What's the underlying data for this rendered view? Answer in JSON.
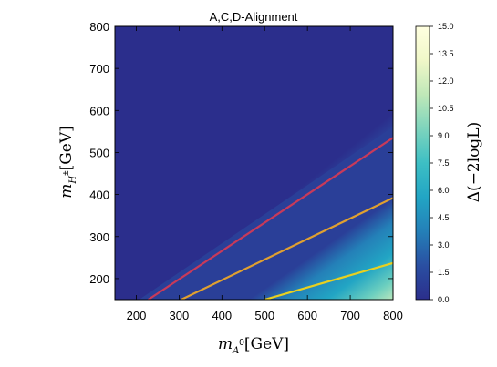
{
  "chart_data": {
    "type": "heatmap",
    "title": "A,C,D-Alignment",
    "x": {
      "label_math": "m",
      "label_sub": "A",
      "label_sup": "0",
      "label_unit": "[GeV]",
      "range": [
        150,
        800
      ],
      "ticks": [
        200,
        300,
        400,
        500,
        600,
        700,
        800
      ]
    },
    "y": {
      "label_math": "m",
      "label_sub": "H",
      "label_sup": "±",
      "label_unit": "[GeV]",
      "range": [
        150,
        800
      ],
      "ticks": [
        200,
        300,
        400,
        500,
        600,
        700,
        800
      ]
    },
    "colorbar": {
      "label": "Δ(−2logL)",
      "range": [
        0,
        15
      ],
      "ticks": [
        "0.0",
        "1.5",
        "3.0",
        "4.5",
        "6.0",
        "7.5",
        "9.0",
        "10.5",
        "12.0",
        "13.5",
        "15.0"
      ],
      "colors": [
        "#2b2e8c",
        "#2a4fa2",
        "#2480b8",
        "#22a5c4",
        "#3dbfc4",
        "#7dd4bd",
        "#bfe8b8",
        "#f0f7c8",
        "#ffffe0"
      ]
    },
    "contours": [
      {
        "color": "#c83a5a",
        "points": [
          [
            228,
            150
          ],
          [
            800,
            535
          ]
        ]
      },
      {
        "color": "#e0a030",
        "points": [
          [
            305,
            150
          ],
          [
            800,
            392
          ]
        ]
      },
      {
        "color": "#e8d020",
        "points": [
          [
            500,
            150
          ],
          [
            800,
            237
          ]
        ]
      }
    ]
  }
}
